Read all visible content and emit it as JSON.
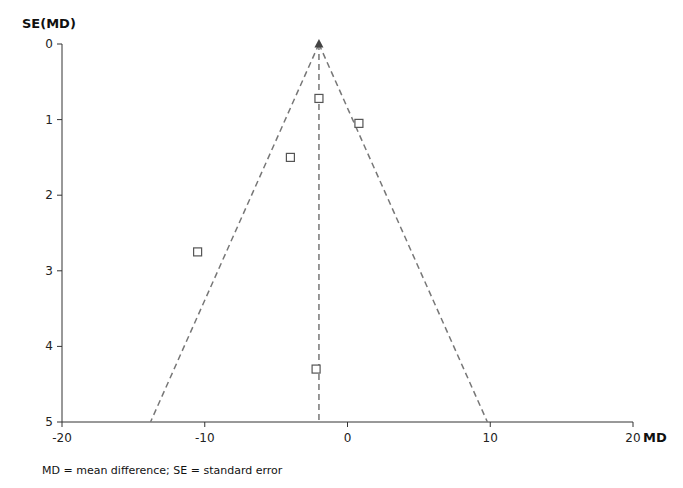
{
  "chart_data": {
    "type": "scatter",
    "xlabel": "MD",
    "ylabel": "SE(MD)",
    "annotations": [
      "MD = mean difference; SE = standard error"
    ],
    "x": [
      -10.5,
      -4.0,
      -2.0,
      0.8,
      -2.2
    ],
    "values": [
      2.75,
      1.5,
      0.72,
      1.05,
      4.3
    ],
    "marker": "square",
    "color": "#555555",
    "xlim": [
      -20,
      20
    ],
    "ylim": [
      5,
      0
    ],
    "xticks": [
      -20,
      -10,
      0,
      10,
      20
    ],
    "yticks": [
      0,
      1,
      2,
      3,
      4,
      5
    ],
    "funnel": {
      "apex_x": -2,
      "apex_y": 0,
      "base_y": 5,
      "left_x": -13.8,
      "right_x": 9.8,
      "line_style": "dashed",
      "color": "#777777"
    },
    "vertical_line_x": -2
  }
}
